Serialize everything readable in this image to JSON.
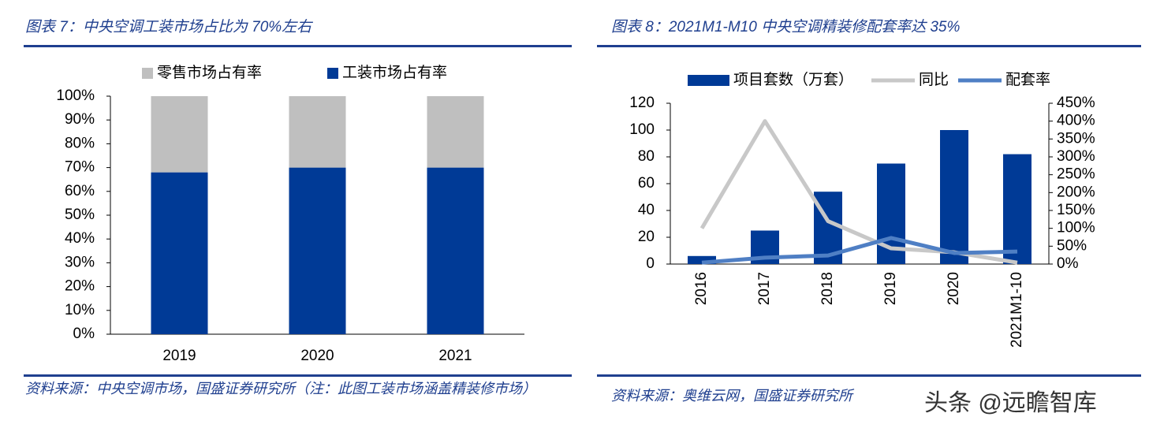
{
  "chart_data": [
    {
      "type": "bar",
      "stacked": true,
      "title": "图表 7：中央空调工装市场占比为 70%左右",
      "source": "资料来源：中央空调市场，国盛证券研究所（注：此图工装市场涵盖精装修市场）",
      "categories": [
        "2019",
        "2020",
        "2021"
      ],
      "series": [
        {
          "name": "工装市场占有率",
          "color": "#003a96",
          "values": [
            68,
            70,
            70
          ]
        },
        {
          "name": "零售市场占有率",
          "color": "#bfbfbf",
          "values": [
            32,
            30,
            30
          ]
        }
      ],
      "ylim": [
        0,
        100
      ],
      "yticks": [
        {
          "value": 0,
          "label": "0%"
        },
        {
          "value": 10,
          "label": "10%"
        },
        {
          "value": 20,
          "label": "20%"
        },
        {
          "value": 30,
          "label": "30%"
        },
        {
          "value": 40,
          "label": "40%"
        },
        {
          "value": 50,
          "label": "50%"
        },
        {
          "value": 60,
          "label": "60%"
        },
        {
          "value": 70,
          "label": "70%"
        },
        {
          "value": 80,
          "label": "80%"
        },
        {
          "value": 90,
          "label": "90%"
        },
        {
          "value": 100,
          "label": "100%"
        }
      ]
    },
    {
      "type": "bar",
      "title": "图表 8：2021M1-M10 中央空调精装修配套率达 35%",
      "source": "资料来源：奥维云网，国盛证券研究所",
      "categories": [
        "2016",
        "2017",
        "2018",
        "2019",
        "2020",
        "2021M1-10"
      ],
      "series": [
        {
          "name": "项目套数（万套）",
          "type": "bar",
          "color": "#003a96",
          "values": [
            6,
            25,
            54,
            75,
            100,
            82
          ]
        },
        {
          "name": "同比",
          "type": "line",
          "axis": "y2",
          "color": "#c8c8c8",
          "values": [
            100,
            400,
            120,
            44,
            33,
            4
          ]
        },
        {
          "name": "配套率",
          "type": "line",
          "axis": "y2",
          "color": "#4f7fc4",
          "values": [
            4,
            18,
            24,
            73,
            31,
            35
          ]
        }
      ],
      "ylim": [
        0,
        120
      ],
      "yticks": [
        0,
        20,
        40,
        60,
        80,
        100,
        120
      ],
      "y2lim": [
        0,
        450
      ],
      "y2ticks": [
        {
          "value": 0,
          "label": "0%"
        },
        {
          "value": 50,
          "label": "50%"
        },
        {
          "value": 100,
          "label": "100%"
        },
        {
          "value": 150,
          "label": "150%"
        },
        {
          "value": 200,
          "label": "200%"
        },
        {
          "value": 250,
          "label": "250%"
        },
        {
          "value": 300,
          "label": "300%"
        },
        {
          "value": 350,
          "label": "350%"
        },
        {
          "value": 400,
          "label": "400%"
        },
        {
          "value": 450,
          "label": "450%"
        }
      ]
    }
  ],
  "watermark": "头条 @远瞻智库"
}
